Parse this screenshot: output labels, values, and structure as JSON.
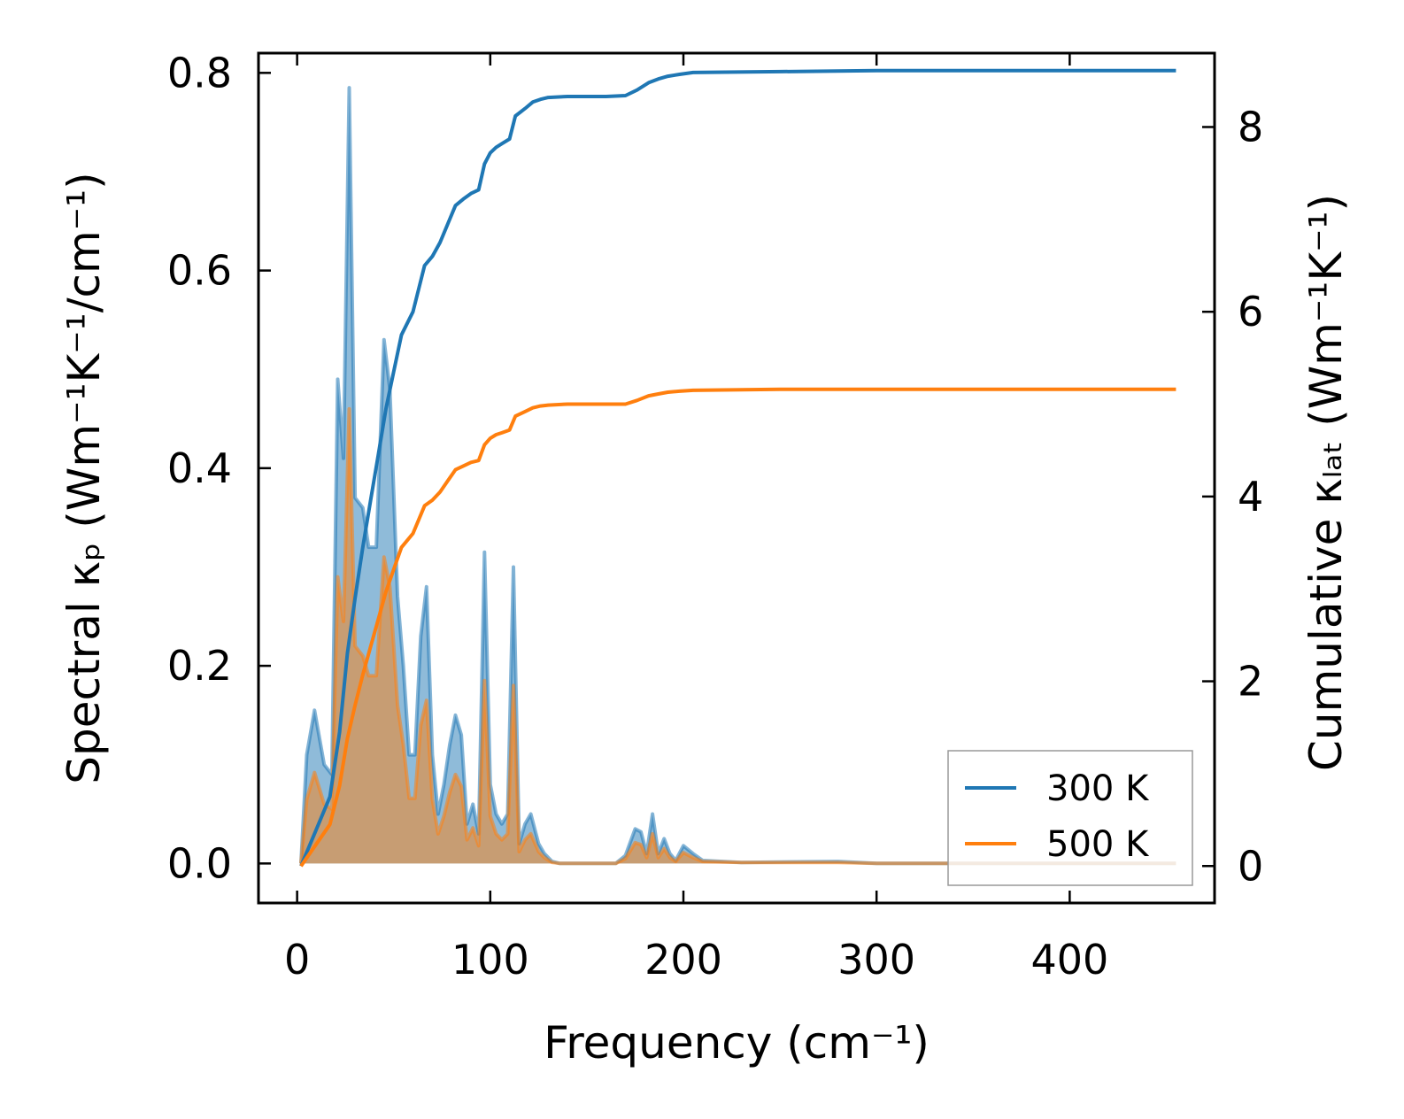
{
  "chart_data": {
    "type": "area",
    "title": "",
    "xlabel": "Frequency (cm⁻¹)",
    "ylabel_left": "Spectral κₚ (Wm⁻¹K⁻¹/cm⁻¹)",
    "ylabel_right": "Cumulative κₗₐₜ (Wm⁻¹K⁻¹)",
    "xlim": [
      -20,
      475
    ],
    "ylim_left": [
      -0.04,
      0.82
    ],
    "ylim_right": [
      -0.4,
      8.8
    ],
    "xticks": [
      0,
      100,
      200,
      300,
      400
    ],
    "xtick_labels": [
      "0",
      "100",
      "200",
      "300",
      "400"
    ],
    "yticks_left": [
      0.0,
      0.2,
      0.4,
      0.6,
      0.8
    ],
    "ytick_labels_left": [
      "0.0",
      "0.2",
      "0.4",
      "0.6",
      "0.8"
    ],
    "yticks_right": [
      0,
      2,
      4,
      6,
      8
    ],
    "ytick_labels_right": [
      "0",
      "2",
      "4",
      "6",
      "8"
    ],
    "legend_position": "lower-right",
    "series": [
      {
        "name": "300 K",
        "legend_label": "300 K",
        "color": "#1f77b4",
        "spectral": {
          "x": [
            2,
            5,
            9,
            14,
            18,
            21,
            24,
            27,
            30,
            34,
            37,
            41,
            45,
            48,
            52,
            55,
            58,
            61,
            64,
            67,
            70,
            73,
            76,
            79,
            82,
            85,
            88,
            91,
            94,
            97,
            100,
            103,
            106,
            109,
            112,
            115,
            118,
            121,
            125,
            128,
            132,
            136,
            150,
            165,
            170,
            175,
            178,
            181,
            184,
            187,
            190,
            193,
            196,
            200,
            205,
            210,
            230,
            280,
            300,
            350,
            400,
            455
          ],
          "y": [
            0.0,
            0.11,
            0.155,
            0.1,
            0.09,
            0.49,
            0.41,
            0.785,
            0.37,
            0.36,
            0.32,
            0.32,
            0.53,
            0.48,
            0.27,
            0.2,
            0.11,
            0.11,
            0.23,
            0.28,
            0.11,
            0.05,
            0.08,
            0.12,
            0.15,
            0.13,
            0.04,
            0.06,
            0.03,
            0.315,
            0.08,
            0.05,
            0.04,
            0.05,
            0.3,
            0.02,
            0.04,
            0.05,
            0.02,
            0.01,
            0.002,
            0.0,
            0.0,
            0.0,
            0.008,
            0.035,
            0.032,
            0.01,
            0.05,
            0.01,
            0.025,
            0.01,
            0.003,
            0.018,
            0.01,
            0.003,
            0.001,
            0.002,
            0.0,
            0.0,
            0.0,
            0.0
          ]
        },
        "cumulative": {
          "x": [
            2,
            10,
            17,
            22,
            26,
            30,
            34,
            38,
            42,
            46,
            50,
            54,
            60,
            66,
            70,
            74,
            78,
            82,
            86,
            90,
            94,
            97,
            100,
            103,
            106,
            110,
            113,
            118,
            122,
            126,
            130,
            140,
            160,
            170,
            176,
            182,
            187,
            192,
            198,
            205,
            250,
            300,
            350,
            400,
            455
          ],
          "y": [
            0.0,
            0.4,
            0.75,
            1.45,
            2.3,
            2.9,
            3.45,
            3.95,
            4.45,
            4.95,
            5.35,
            5.75,
            6.0,
            6.5,
            6.6,
            6.75,
            6.95,
            7.15,
            7.22,
            7.28,
            7.32,
            7.6,
            7.72,
            7.78,
            7.82,
            7.87,
            8.12,
            8.2,
            8.27,
            8.3,
            8.32,
            8.33,
            8.33,
            8.34,
            8.4,
            8.48,
            8.52,
            8.55,
            8.57,
            8.59,
            8.6,
            8.61,
            8.61,
            8.61,
            8.61
          ]
        }
      },
      {
        "name": "500 K",
        "legend_label": "500 K",
        "color": "#ff7f0e",
        "spectral": {
          "x": [
            2,
            5,
            9,
            14,
            18,
            21,
            24,
            27,
            30,
            34,
            37,
            41,
            45,
            48,
            52,
            55,
            58,
            61,
            64,
            67,
            70,
            73,
            76,
            79,
            82,
            85,
            88,
            91,
            94,
            97,
            100,
            103,
            106,
            109,
            112,
            115,
            118,
            121,
            125,
            128,
            132,
            136,
            150,
            165,
            170,
            175,
            178,
            181,
            184,
            187,
            190,
            193,
            196,
            200,
            205,
            210,
            230,
            280,
            300,
            350,
            400,
            455
          ],
          "y": [
            0.0,
            0.065,
            0.092,
            0.06,
            0.055,
            0.29,
            0.245,
            0.46,
            0.22,
            0.21,
            0.19,
            0.19,
            0.31,
            0.28,
            0.16,
            0.12,
            0.066,
            0.066,
            0.14,
            0.165,
            0.065,
            0.03,
            0.048,
            0.072,
            0.09,
            0.078,
            0.024,
            0.036,
            0.018,
            0.185,
            0.048,
            0.03,
            0.024,
            0.03,
            0.18,
            0.012,
            0.024,
            0.03,
            0.012,
            0.006,
            0.001,
            0.0,
            0.0,
            0.0,
            0.005,
            0.021,
            0.019,
            0.006,
            0.03,
            0.006,
            0.015,
            0.006,
            0.002,
            0.011,
            0.006,
            0.002,
            0.001,
            0.001,
            0.0,
            0.0,
            0.0,
            0.0
          ]
        },
        "cumulative": {
          "x": [
            2,
            10,
            17,
            22,
            26,
            30,
            34,
            38,
            42,
            46,
            50,
            54,
            60,
            66,
            70,
            74,
            78,
            82,
            86,
            90,
            94,
            97,
            100,
            103,
            106,
            110,
            113,
            118,
            122,
            126,
            130,
            140,
            160,
            170,
            176,
            182,
            187,
            192,
            198,
            205,
            250,
            300,
            350,
            400,
            455
          ],
          "y": [
            0.0,
            0.24,
            0.45,
            0.87,
            1.38,
            1.74,
            2.07,
            2.37,
            2.67,
            2.97,
            3.21,
            3.45,
            3.6,
            3.9,
            3.96,
            4.05,
            4.17,
            4.29,
            4.33,
            4.37,
            4.39,
            4.56,
            4.63,
            4.67,
            4.69,
            4.72,
            4.87,
            4.92,
            4.96,
            4.98,
            4.99,
            5.0,
            5.0,
            5.0,
            5.04,
            5.09,
            5.11,
            5.13,
            5.14,
            5.15,
            5.16,
            5.16,
            5.16,
            5.16,
            5.16
          ]
        }
      }
    ]
  }
}
